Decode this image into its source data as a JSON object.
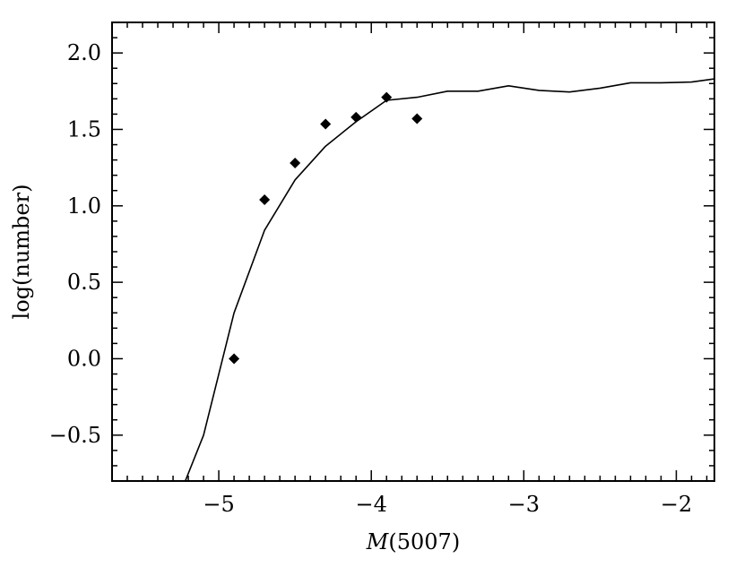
{
  "chart_data": {
    "type": "line",
    "title": "",
    "xlabel_italic": "M",
    "xlabel_rest": "(5007)",
    "ylabel": "log(number)",
    "xlim": [
      -5.7,
      -1.75
    ],
    "ylim": [
      -0.8,
      2.2
    ],
    "x_major_ticks": [
      -5,
      -4,
      -3,
      -2
    ],
    "x_tick_labels": [
      "−5",
      "−4",
      "−3",
      "−2"
    ],
    "y_major_ticks": [
      -0.5,
      0.0,
      0.5,
      1.0,
      1.5,
      2.0
    ],
    "y_tick_labels": [
      "−0.5",
      "0.0",
      "0.5",
      "1.0",
      "1.5",
      "2.0"
    ],
    "grid": false,
    "series": [
      {
        "kind": "line",
        "color": "#000000",
        "x": [
          -5.22,
          -5.1,
          -4.9,
          -4.7,
          -4.5,
          -4.3,
          -4.1,
          -3.9,
          -3.7,
          -3.5,
          -3.3,
          -3.1,
          -2.9,
          -2.7,
          -2.5,
          -2.3,
          -2.1,
          -1.9,
          -1.75
        ],
        "y": [
          -0.8,
          -0.5,
          0.3,
          0.84,
          1.17,
          1.39,
          1.55,
          1.69,
          1.71,
          1.75,
          1.75,
          1.785,
          1.755,
          1.745,
          1.77,
          1.805,
          1.805,
          1.81,
          1.83
        ]
      },
      {
        "kind": "scatter",
        "marker": "diamond",
        "color": "#000000",
        "x": [
          -4.9,
          -4.7,
          -4.5,
          -4.3,
          -4.1,
          -3.9,
          -3.7
        ],
        "y": [
          0.0,
          1.04,
          1.28,
          1.535,
          1.58,
          1.71,
          1.57
        ]
      }
    ]
  }
}
